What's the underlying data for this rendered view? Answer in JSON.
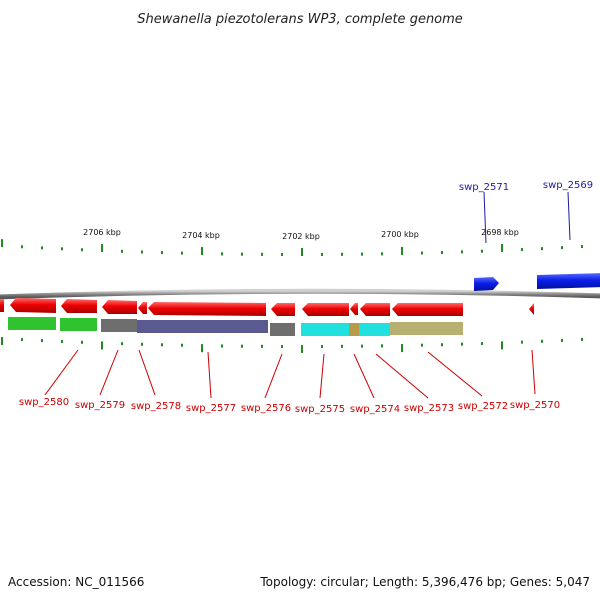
{
  "title": "Shewanella piezotolerans WP3, complete genome",
  "footer": {
    "accession": "Accession: NC_011566",
    "summary": "Topology: circular; Length: 5,396,476 bp; Genes: 5,047"
  },
  "colors": {
    "background": "#ffffff",
    "backbone": "#8a8a8a",
    "tick": "#1f8a1f",
    "forward_gene": "#0a1ee6",
    "reverse_gene": "#ee0000",
    "forward_label": "#1a1aaa",
    "reverse_label": "#cc0000",
    "cog_green": "#2fc42f",
    "cog_gray": "#6e6e6e",
    "cog_slate": "#5a5a90",
    "cog_cyan": "#20e0e0",
    "cog_olive": "#b8b070",
    "cog_tan": "#b89a4a"
  },
  "axis": {
    "ticks": [
      "2706 kbp",
      "2704 kbp",
      "2702 kbp",
      "2700 kbp",
      "2698 kbp"
    ]
  },
  "genes": [
    {
      "id": "swp_2580",
      "strand": "-",
      "cog": "cog_green"
    },
    {
      "id": "swp_2579",
      "strand": "-",
      "cog": "cog_green"
    },
    {
      "id": "swp_2578",
      "strand": "-",
      "cog": "cog_gray"
    },
    {
      "id": "swp_2577",
      "strand": "-",
      "cog": "cog_slate"
    },
    {
      "id": "swp_2576",
      "strand": "-",
      "cog": "cog_gray"
    },
    {
      "id": "swp_2575",
      "strand": "-",
      "cog": "cog_cyan"
    },
    {
      "id": "swp_2574",
      "strand": "-",
      "cog": "cog_tan"
    },
    {
      "id": "swp_2573",
      "strand": "-",
      "cog": "cog_cyan"
    },
    {
      "id": "swp_2572",
      "strand": "-",
      "cog": "cog_olive"
    },
    {
      "id": "swp_2570",
      "strand": "-",
      "cog": ""
    },
    {
      "id": "swp_2571",
      "strand": "+",
      "cog": ""
    },
    {
      "id": "swp_2569",
      "strand": "+",
      "cog": ""
    }
  ]
}
